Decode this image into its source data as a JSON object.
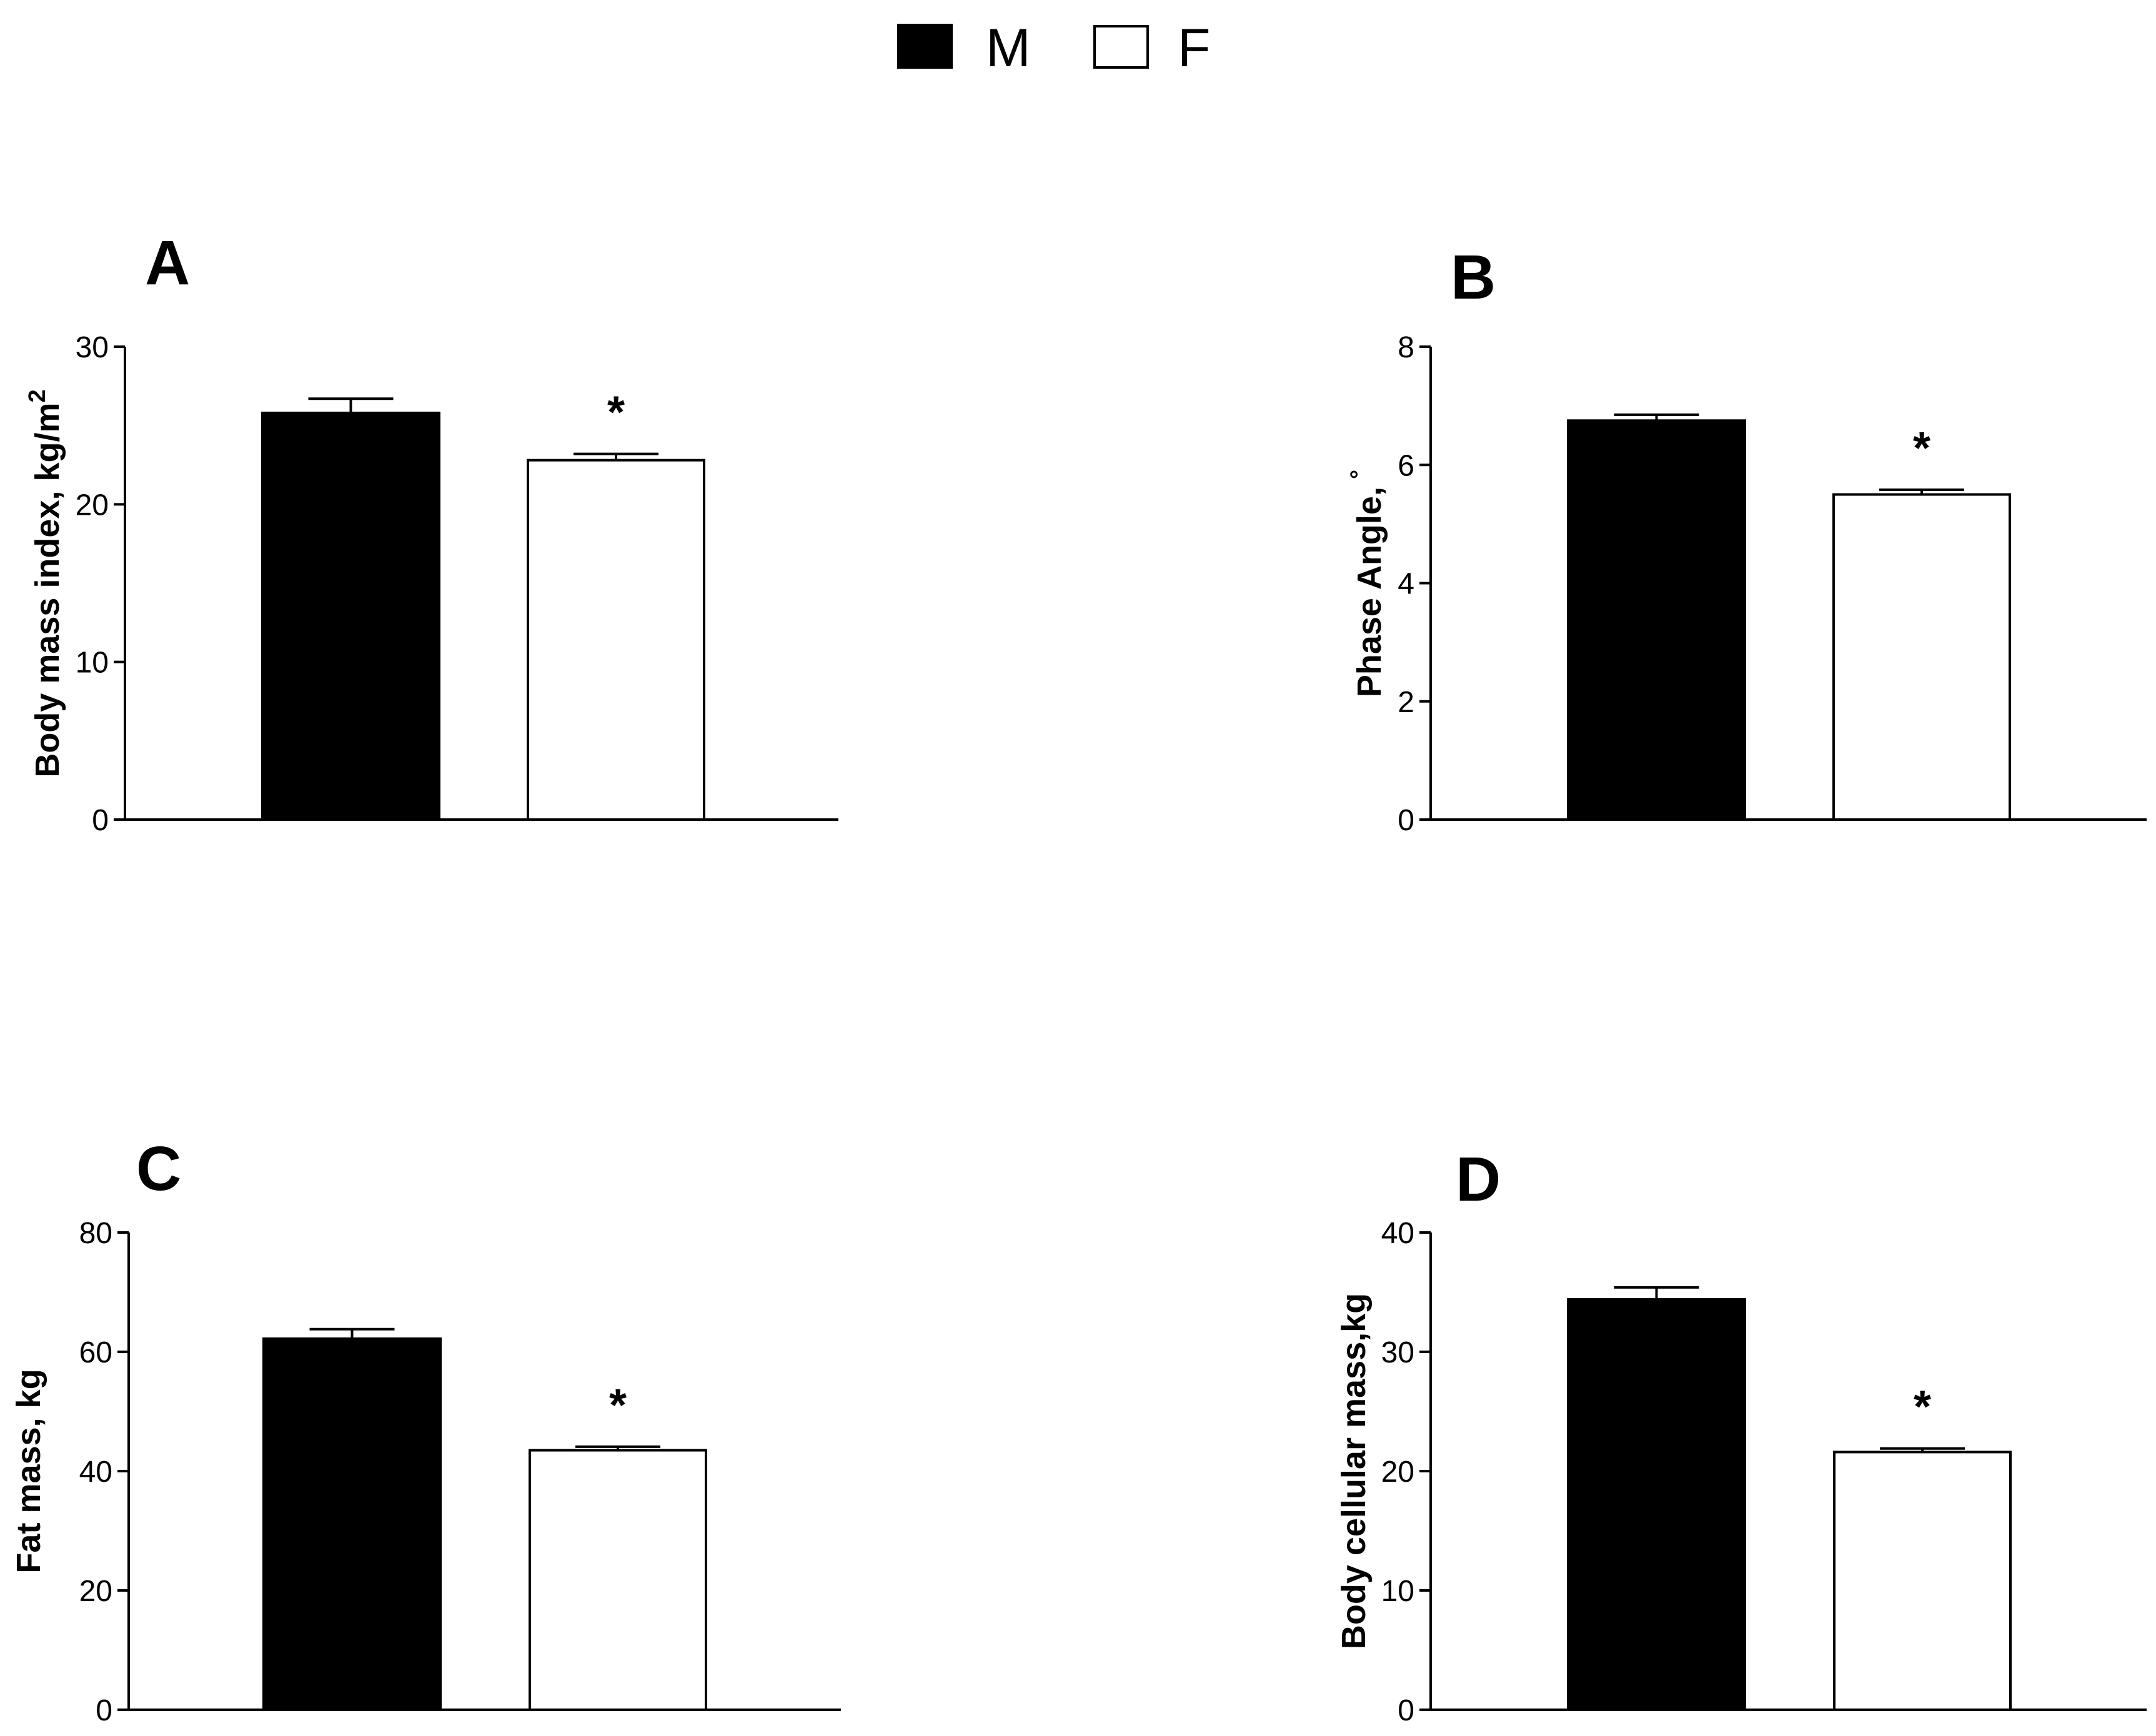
{
  "legend": {
    "items": [
      {
        "label": "M",
        "color": "#000000"
      },
      {
        "label": "F",
        "color": "#ffffff"
      }
    ]
  },
  "chart_data": [
    {
      "panel": "A",
      "type": "bar",
      "categories": [
        "M",
        "F"
      ],
      "values": [
        25.8,
        22.8
      ],
      "errors": [
        0.9,
        0.4
      ],
      "significance": [
        "",
        "*"
      ],
      "ylabel": "Body mass index, kg/m",
      "ylabel_sup": "2",
      "ylim": [
        0,
        30
      ],
      "yticks": [
        0,
        10,
        20,
        30
      ],
      "colors": [
        "#000000",
        "#ffffff"
      ]
    },
    {
      "panel": "B",
      "type": "bar",
      "categories": [
        "M",
        "F"
      ],
      "values": [
        6.75,
        5.5
      ],
      "errors": [
        0.1,
        0.08
      ],
      "significance": [
        "",
        "*"
      ],
      "ylabel": "Phase Angle,",
      "ylabel_sup": "°",
      "ylim": [
        0,
        8
      ],
      "yticks": [
        0,
        2,
        4,
        6,
        8
      ],
      "colors": [
        "#000000",
        "#ffffff"
      ]
    },
    {
      "panel": "C",
      "type": "bar",
      "categories": [
        "M",
        "F"
      ],
      "values": [
        62.2,
        43.5
      ],
      "errors": [
        1.6,
        0.6
      ],
      "significance": [
        "",
        "*"
      ],
      "ylabel": "Fat mass, kg",
      "ylabel_sup": "",
      "ylim": [
        0,
        80
      ],
      "yticks": [
        0,
        20,
        40,
        60,
        80
      ],
      "colors": [
        "#000000",
        "#ffffff"
      ]
    },
    {
      "panel": "D",
      "type": "bar",
      "categories": [
        "M",
        "F"
      ],
      "values": [
        34.4,
        21.6
      ],
      "errors": [
        1.0,
        0.3
      ],
      "significance": [
        "",
        "*"
      ],
      "ylabel": "Body cellular mass,kg",
      "ylabel_sup": "",
      "ylim": [
        0,
        40
      ],
      "yticks": [
        0,
        10,
        20,
        30,
        40
      ],
      "colors": [
        "#000000",
        "#ffffff"
      ]
    }
  ]
}
